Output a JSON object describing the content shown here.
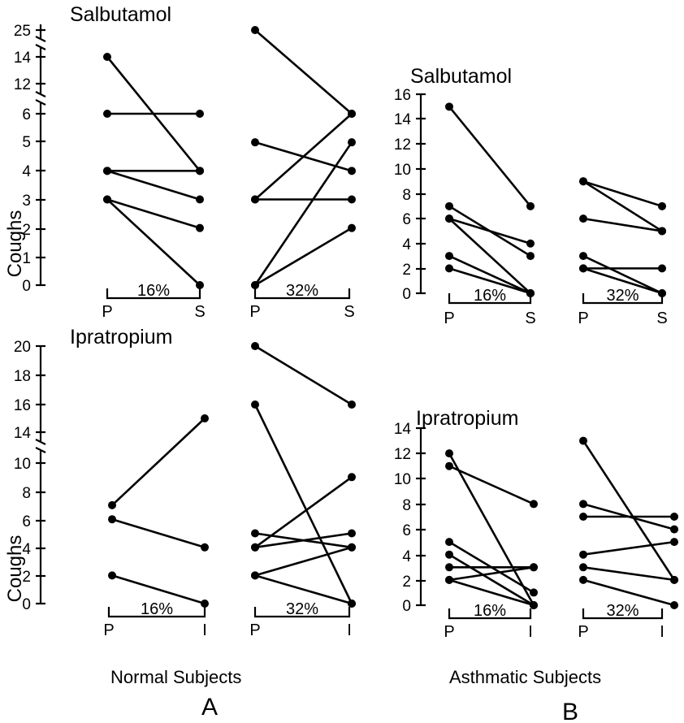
{
  "group_labels": {
    "A": {
      "text": "Normal  Subjects",
      "letter": "A"
    },
    "B": {
      "text": "Asthmatic  Subjects",
      "letter": "B"
    }
  },
  "chart_data": [
    {
      "id": "A_salb",
      "type": "line",
      "title": "Salbutamol",
      "ylabel": "Coughs",
      "yticks": [
        "0",
        "1",
        "2",
        "3",
        "4",
        "5",
        "6",
        "12",
        "14",
        "25"
      ],
      "axis_breaks": true,
      "groups": [
        {
          "condition": "16%",
          "x_labels": [
            "P",
            "S"
          ],
          "pairs": [
            [
              14,
              4
            ],
            [
              6,
              6
            ],
            [
              4,
              4
            ],
            [
              4,
              3
            ],
            [
              3,
              2
            ],
            [
              3,
              0
            ]
          ]
        },
        {
          "condition": "32%",
          "x_labels": [
            "P",
            "S"
          ],
          "pairs": [
            [
              25,
              6
            ],
            [
              5,
              4
            ],
            [
              3,
              3
            ],
            [
              3,
              6
            ],
            [
              0,
              5
            ],
            [
              0,
              2
            ]
          ]
        }
      ]
    },
    {
      "id": "A_ipra",
      "type": "line",
      "title": "Ipratropium",
      "ylabel": "Coughs",
      "yticks": [
        "0",
        "2",
        "4",
        "6",
        "8",
        "10",
        "14",
        "16",
        "18",
        "20"
      ],
      "axis_breaks": true,
      "groups": [
        {
          "condition": "16%",
          "x_labels": [
            "P",
            "I"
          ],
          "pairs": [
            [
              7,
              15
            ],
            [
              6,
              4
            ],
            [
              2,
              0
            ]
          ]
        },
        {
          "condition": "32%",
          "x_labels": [
            "P",
            "I"
          ],
          "pairs": [
            [
              20,
              16
            ],
            [
              16,
              0
            ],
            [
              5,
              4
            ],
            [
              4,
              5
            ],
            [
              4,
              9
            ],
            [
              2,
              4
            ],
            [
              2,
              0
            ]
          ]
        }
      ]
    },
    {
      "id": "B_salb",
      "type": "line",
      "title": "Salbutamol",
      "ylabel": "",
      "yticks": [
        "0",
        "2",
        "4",
        "6",
        "8",
        "10",
        "12",
        "14",
        "16"
      ],
      "ylim": [
        0,
        16
      ],
      "groups": [
        {
          "condition": "16%",
          "x_labels": [
            "P",
            "S"
          ],
          "pairs": [
            [
              15,
              7
            ],
            [
              7,
              3
            ],
            [
              6,
              4
            ],
            [
              6,
              0
            ],
            [
              3,
              0
            ],
            [
              2,
              0
            ]
          ]
        },
        {
          "condition": "32%",
          "x_labels": [
            "P",
            "S"
          ],
          "pairs": [
            [
              9,
              5
            ],
            [
              9,
              7
            ],
            [
              6,
              5
            ],
            [
              3,
              0
            ],
            [
              2,
              2
            ],
            [
              2,
              0
            ]
          ]
        }
      ]
    },
    {
      "id": "B_ipra",
      "type": "line",
      "title": "Ipratropium",
      "ylabel": "",
      "yticks": [
        "0",
        "2",
        "4",
        "6",
        "8",
        "10",
        "12",
        "14"
      ],
      "ylim": [
        0,
        14
      ],
      "groups": [
        {
          "condition": "16%",
          "x_labels": [
            "P",
            "I"
          ],
          "pairs": [
            [
              12,
              0
            ],
            [
              11,
              8
            ],
            [
              5,
              1
            ],
            [
              4,
              0
            ],
            [
              3,
              3
            ],
            [
              2,
              3
            ],
            [
              2,
              0
            ]
          ]
        },
        {
          "condition": "32%",
          "x_labels": [
            "P",
            "I"
          ],
          "pairs": [
            [
              13,
              2
            ],
            [
              8,
              6
            ],
            [
              7,
              7
            ],
            [
              4,
              5
            ],
            [
              3,
              2
            ],
            [
              2,
              0
            ]
          ]
        }
      ]
    }
  ]
}
